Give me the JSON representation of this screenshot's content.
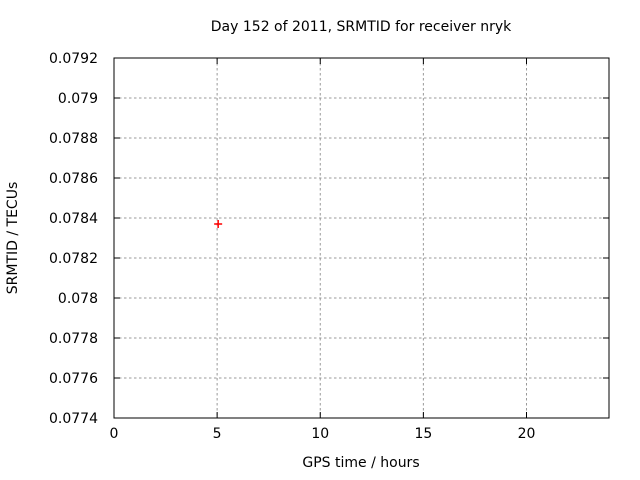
{
  "window": {
    "kind": "gnuplot-plot-window"
  },
  "chart_data": {
    "type": "scatter",
    "title": "Day 152 of 2011, SRMTID for receiver nryk",
    "xlabel": "GPS time / hours",
    "ylabel": "SRMTID / TECUs",
    "xlim": [
      0,
      24
    ],
    "ylim": [
      0.0774,
      0.0792
    ],
    "xticks": [
      0,
      5,
      10,
      15,
      20
    ],
    "xticklabels": [
      "0",
      "5",
      "10",
      "15",
      "20"
    ],
    "yticks": [
      0.0774,
      0.0776,
      0.0778,
      0.078,
      0.0782,
      0.0784,
      0.0786,
      0.0788,
      0.079,
      0.0792
    ],
    "yticklabels": [
      "0.0774",
      "0.0776",
      "0.0778",
      "0.078",
      "0.0782",
      "0.0784",
      "0.0786",
      "0.0788",
      "0.079",
      "0.0792"
    ],
    "grid": true,
    "legend": "none",
    "series": [
      {
        "name": "SRMTID",
        "marker": "plus",
        "color": "#ff0000",
        "points": [
          {
            "x": 5.05,
            "y": 0.07837
          }
        ]
      }
    ]
  },
  "colors": {
    "background": "#ffffff",
    "axis": "#000000",
    "grid": "#999999",
    "text": "#000000",
    "marker": "#ff0000"
  }
}
